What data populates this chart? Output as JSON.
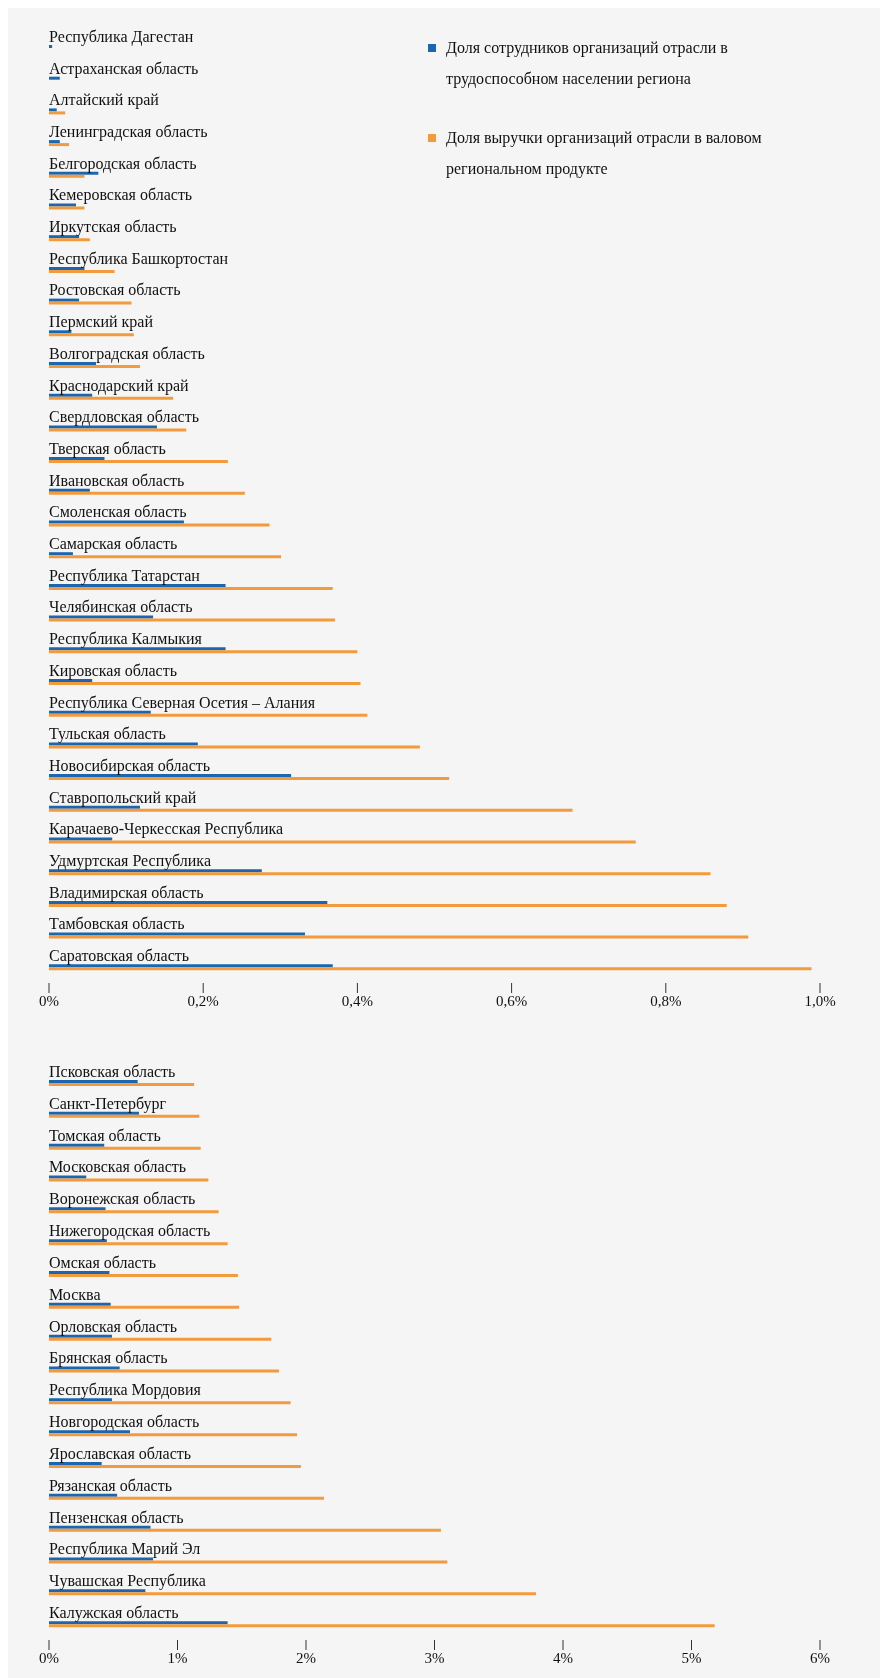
{
  "chart_data": [
    {
      "type": "bar",
      "orientation": "horizontal",
      "legend": "top right",
      "categories": [
        "Республика Дагестан",
        "Астраханская область",
        "Алтайский край",
        "Ленинградская область",
        "Белгородская область",
        "Кемеровская область",
        "Иркутская область",
        "Республика Башкортостан",
        "Ростовская область",
        "Пермский край",
        "Волгоградская область",
        "Краснодарский край",
        "Свердловская область",
        "Тверская область",
        "Ивановская область",
        "Смоленская область",
        "Самарская область",
        "Республика Татарстан",
        "Челябинская область",
        "Республика Калмыкия",
        "Кировская область",
        "Республика Северная Осетия – Алания",
        "Тульская область",
        "Новосибирская область",
        "Ставропольский край",
        "Карачаево-Черкесская Республика",
        "Удмуртская Республика",
        "Владимирская область",
        "Тамбовская область",
        "Саратовская область"
      ],
      "series": [
        {
          "name": "Доля сотрудников организаций отрасли в трудоспособном населении региона",
          "color": "#1a66b0",
          "values": [
            0.004,
            0.014,
            0.01,
            0.014,
            0.064,
            0.035,
            0.039,
            0.046,
            0.039,
            0.029,
            0.061,
            0.056,
            0.14,
            0.072,
            0.053,
            0.175,
            0.031,
            0.229,
            0.135,
            0.229,
            0.056,
            0.132,
            0.193,
            0.314,
            0.118,
            0.082,
            0.276,
            0.361,
            0.332,
            0.368
          ]
        },
        {
          "name": "Доля выручки организаций отрасли в валовом региональном продукте",
          "color": "#f39a3c",
          "values": [
            null,
            null,
            0.021,
            0.026,
            0.046,
            0.046,
            0.053,
            0.085,
            0.107,
            0.11,
            0.118,
            0.161,
            0.178,
            0.232,
            0.254,
            0.286,
            0.301,
            0.368,
            0.371,
            0.4,
            0.404,
            0.413,
            0.481,
            0.519,
            0.679,
            0.761,
            0.858,
            0.879,
            0.907,
            0.989
          ]
        }
      ],
      "xlim": [
        0,
        1
      ],
      "xticks": [
        {
          "value": 0,
          "label": "0%"
        },
        {
          "value": 0.2,
          "label": "0,2%"
        },
        {
          "value": 0.4,
          "label": "0,4%"
        },
        {
          "value": 0.6,
          "label": "0,6%"
        },
        {
          "value": 0.8,
          "label": "0,8%"
        },
        {
          "value": 1,
          "label": "1,0%"
        }
      ]
    },
    {
      "type": "bar",
      "orientation": "horizontal",
      "categories": [
        "Псковская область",
        "Санкт-Петербург",
        "Томская область",
        "Московская область",
        "Воронежская область",
        "Нижегородская область",
        "Омская область",
        "Москва",
        "Орловская область",
        "Брянская область",
        "Республика Мордовия",
        "Новгородская область",
        "Ярославская область",
        "Рязанская область",
        "Пензенская область",
        "Республика Марий Эл",
        "Чувашская Республика",
        "Калужская область"
      ],
      "series": [
        {
          "color": "#1a66b0",
          "values": [
            0.69,
            0.7,
            0.43,
            0.29,
            0.44,
            0.45,
            0.47,
            0.48,
            0.49,
            0.55,
            0.49,
            0.63,
            0.41,
            0.53,
            0.79,
            0.81,
            0.75,
            1.39
          ]
        },
        {
          "color": "#f39a3c",
          "values": [
            1.13,
            1.17,
            1.18,
            1.24,
            1.32,
            1.39,
            1.47,
            1.48,
            1.73,
            1.79,
            1.88,
            1.93,
            1.96,
            2.14,
            3.05,
            3.1,
            3.79,
            5.18
          ]
        }
      ],
      "xlim": [
        0,
        6
      ],
      "xticks": [
        {
          "value": 0,
          "label": "0%"
        },
        {
          "value": 1,
          "label": "1%"
        },
        {
          "value": 2,
          "label": "2%"
        },
        {
          "value": 3,
          "label": "3%"
        },
        {
          "value": 4,
          "label": "4%"
        },
        {
          "value": 5,
          "label": "5%"
        },
        {
          "value": 6,
          "label": "6%"
        }
      ]
    }
  ]
}
